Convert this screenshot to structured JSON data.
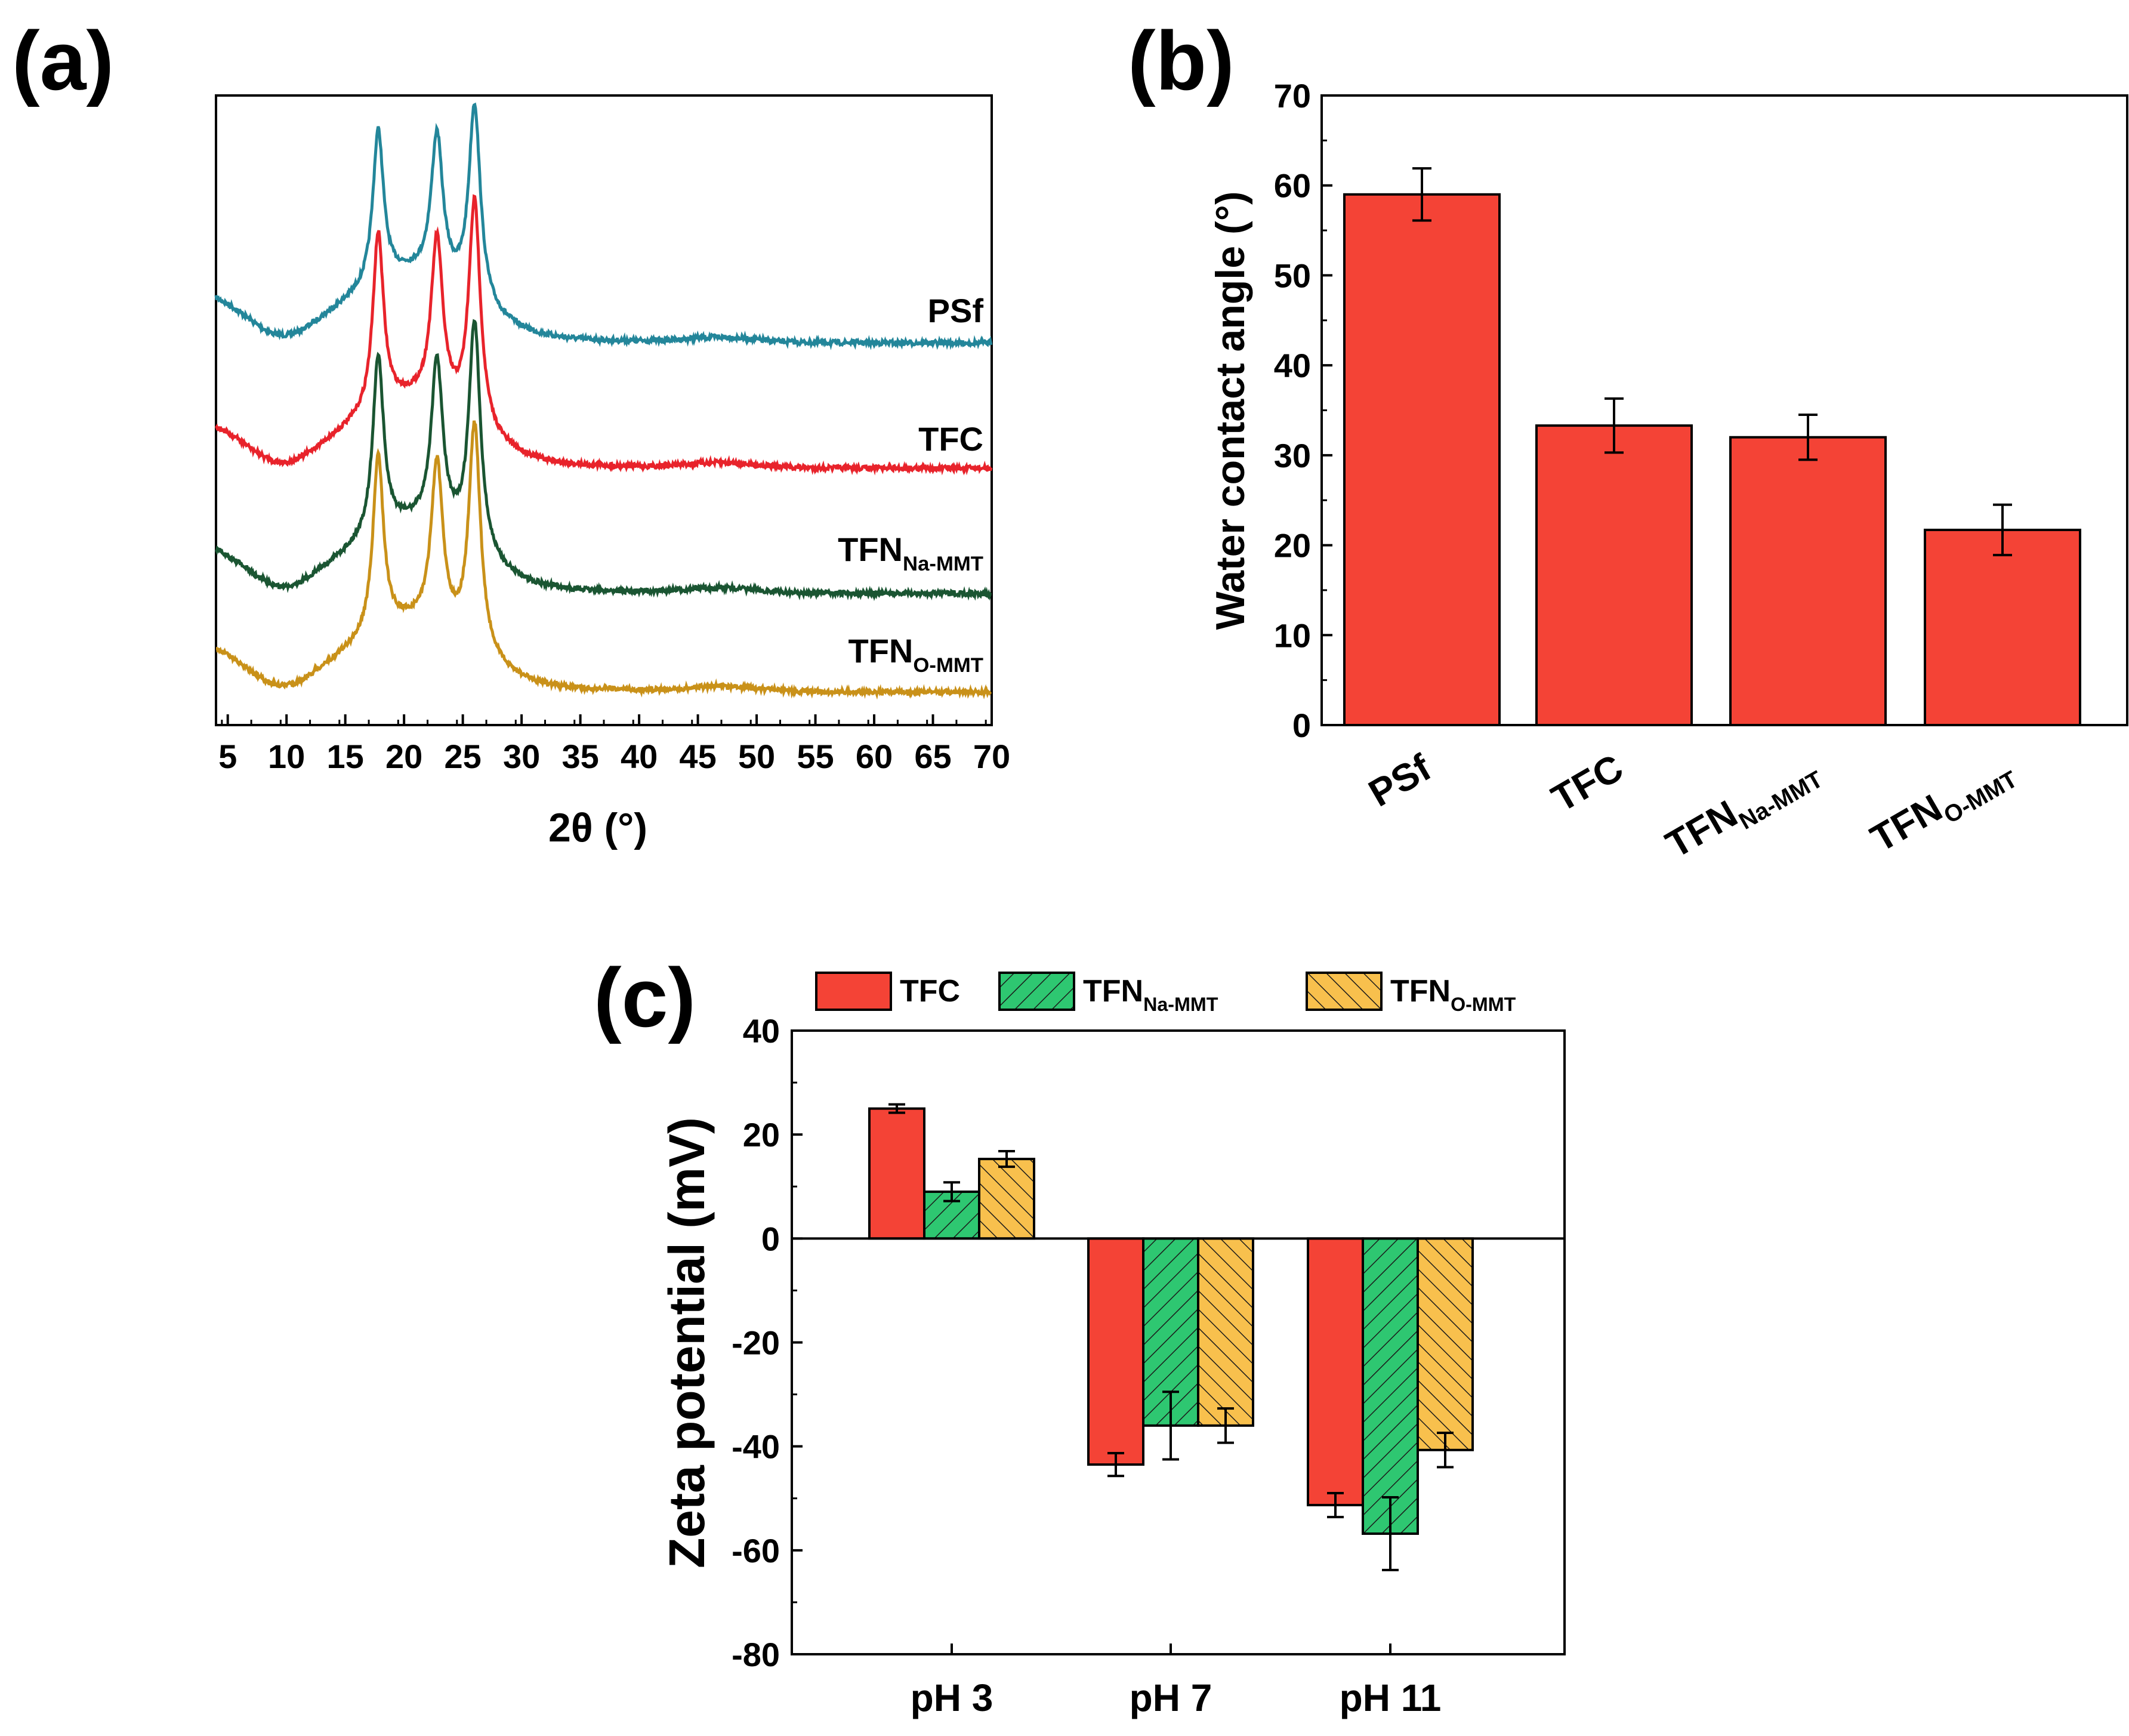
{
  "chart_data": [
    {
      "panel": "(a)",
      "type": "line",
      "xlabel": "2θ (°)",
      "ylabel": "",
      "xlim": [
        4,
        70
      ],
      "xticks": [
        5,
        10,
        15,
        20,
        25,
        30,
        35,
        40,
        45,
        50,
        55,
        60,
        65,
        70
      ],
      "peaks_2theta": [
        17.8,
        22.8,
        26.0
      ],
      "series": [
        {
          "name": "PSf",
          "sub": "",
          "color": "#23869a",
          "baseline_start": 0.92,
          "baseline_end": 0.0,
          "peak_heights": [
            0.78,
            0.73,
            1.0
          ]
        },
        {
          "name": "TFC",
          "sub": "",
          "color": "#e8232b",
          "baseline_start": 0.92,
          "baseline_end": 0.0,
          "peak_heights": [
            0.78,
            0.73,
            1.0
          ]
        },
        {
          "name": "TFN",
          "sub": "Na-MMT",
          "color": "#1a5532",
          "baseline_start": 0.92,
          "baseline_end": 0.0,
          "peak_heights": [
            0.78,
            0.73,
            1.0
          ]
        },
        {
          "name": "TFN",
          "sub": "O-MMT",
          "color": "#c99119",
          "baseline_start": 0.92,
          "baseline_end": 0.0,
          "peak_heights": [
            0.78,
            0.73,
            1.0
          ]
        }
      ]
    },
    {
      "panel": "(b)",
      "type": "bar",
      "ylabel": "Water contact angle (°)",
      "ylim": [
        0,
        70
      ],
      "yticks": [
        0,
        10,
        20,
        30,
        40,
        50,
        60,
        70
      ],
      "categories": [
        {
          "name": "PSf",
          "sub": ""
        },
        {
          "name": "TFC",
          "sub": ""
        },
        {
          "name": "TFN",
          "sub": "Na-MMT"
        },
        {
          "name": "TFN",
          "sub": "O-MMT"
        }
      ],
      "values": [
        59,
        33.3,
        32,
        21.7
      ],
      "errors": [
        2.9,
        3.0,
        2.5,
        2.8
      ],
      "color": "#f44336"
    },
    {
      "panel": "(c)",
      "type": "bar",
      "ylabel": "Zeta potential (mV)",
      "ylim": [
        -80,
        40
      ],
      "yticks": [
        -80,
        -60,
        -40,
        -20,
        0,
        20,
        40
      ],
      "categories": [
        "pH 3",
        "pH 7",
        "pH 11"
      ],
      "legend": "top",
      "series": [
        {
          "name": "TFC",
          "sub": "",
          "color": "#f44336",
          "hatch": false,
          "values": [
            25,
            -43.5,
            -51.3
          ],
          "errors": [
            0.8,
            2.2,
            2.3
          ]
        },
        {
          "name": "TFN",
          "sub": "Na-MMT",
          "color": "#2ec771",
          "hatch": true,
          "values": [
            9,
            -36,
            -56.8
          ],
          "errors": [
            1.8,
            6.5,
            7.0
          ]
        },
        {
          "name": "TFN",
          "sub": "O-MMT",
          "color": "#f8c04d",
          "hatch": true,
          "values": [
            15.3,
            -36,
            -40.7
          ],
          "errors": [
            1.5,
            3.3,
            3.3
          ]
        }
      ]
    }
  ]
}
